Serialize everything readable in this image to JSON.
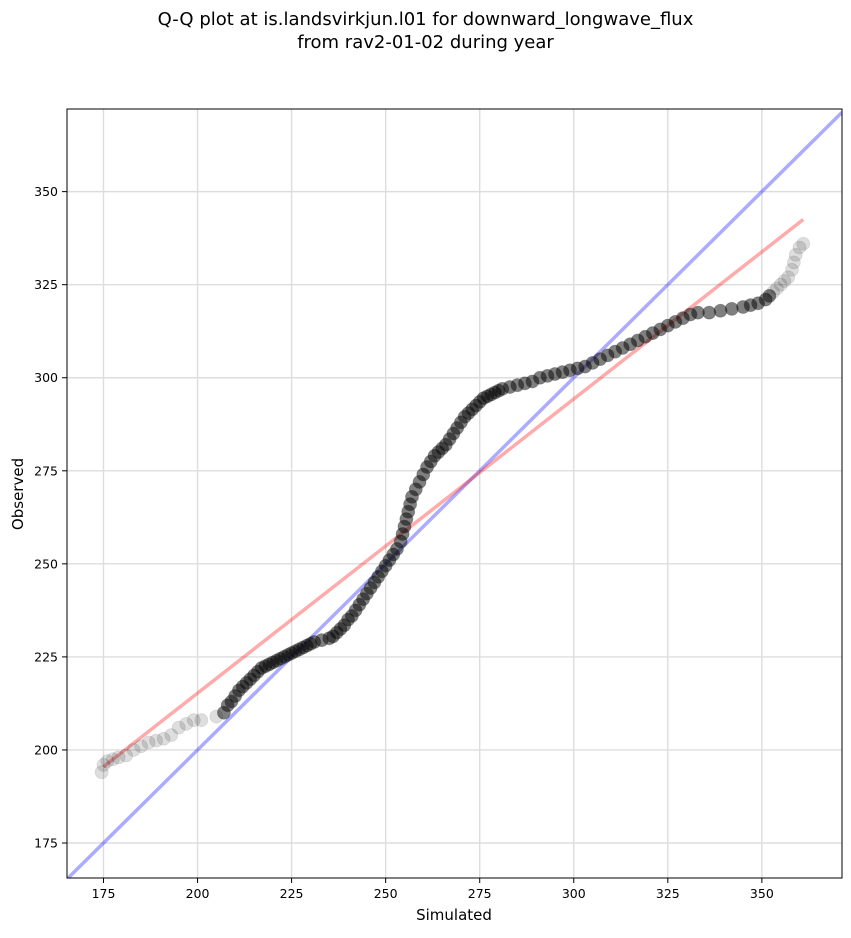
{
  "chart_data": {
    "type": "scatter",
    "title_lines": [
      "Q-Q plot at is.landsvirkjun.l01 for downward_longwave_flux",
      "from rav2-01-02 during year"
    ],
    "xlabel": "Simulated",
    "ylabel": "Observed",
    "xlim": [
      165.3,
      371.3
    ],
    "ylim": [
      165.6,
      372.2
    ],
    "xticks": [
      175,
      200,
      225,
      250,
      275,
      300,
      325,
      350
    ],
    "yticks": [
      175,
      200,
      225,
      250,
      275,
      300,
      325,
      350
    ],
    "grid": true,
    "colors": {
      "points": "#000000",
      "one_to_one_line": "#0000ff",
      "fit_line": "#ff0000",
      "grid": "#dddddd"
    },
    "reference_lines": [
      {
        "kind": "one-to-one",
        "x": [
          165.3,
          371.3
        ],
        "y": [
          165.3,
          371.3
        ]
      },
      {
        "kind": "linear-fit",
        "x": [
          175.0,
          361.0
        ],
        "y": [
          195.5,
          342.5
        ]
      }
    ],
    "series": [
      {
        "points": [
          [
            174.5,
            194
          ],
          [
            175,
            196
          ],
          [
            176,
            197
          ],
          [
            177.5,
            197.5
          ],
          [
            179,
            198
          ],
          [
            181,
            198.5
          ],
          [
            183,
            200
          ],
          [
            185,
            201
          ],
          [
            187,
            202
          ],
          [
            189,
            202.5
          ],
          [
            191,
            203
          ],
          [
            193,
            204
          ],
          [
            195,
            206
          ],
          [
            197,
            207
          ],
          [
            199,
            208
          ],
          [
            201,
            208
          ],
          [
            205,
            209
          ],
          [
            207,
            210
          ],
          [
            208,
            212
          ],
          [
            209,
            213
          ],
          [
            210,
            214.5
          ],
          [
            211,
            216
          ],
          [
            212,
            217
          ],
          [
            213,
            218
          ],
          [
            214,
            219
          ],
          [
            215,
            220
          ],
          [
            216,
            221
          ],
          [
            217,
            222
          ],
          [
            218,
            222.5
          ],
          [
            219,
            223
          ],
          [
            220,
            223.5
          ],
          [
            221,
            224
          ],
          [
            222,
            224.5
          ],
          [
            223,
            225
          ],
          [
            224,
            225.5
          ],
          [
            225,
            226
          ],
          [
            226,
            226.5
          ],
          [
            227,
            227
          ],
          [
            228,
            227.5
          ],
          [
            229,
            228
          ],
          [
            230,
            228.5
          ],
          [
            231,
            229
          ],
          [
            233,
            229.5
          ],
          [
            235,
            230
          ],
          [
            236,
            230.5
          ],
          [
            237,
            231.5
          ],
          [
            238,
            232.5
          ],
          [
            239,
            233.5
          ],
          [
            240,
            235
          ],
          [
            241,
            236
          ],
          [
            242,
            237.5
          ],
          [
            243,
            239
          ],
          [
            244,
            240.5
          ],
          [
            245,
            242
          ],
          [
            246,
            243.5
          ],
          [
            247,
            245
          ],
          [
            248,
            246.5
          ],
          [
            249,
            248
          ],
          [
            250,
            249.5
          ],
          [
            251,
            251
          ],
          [
            252,
            252.5
          ],
          [
            253,
            254
          ],
          [
            254,
            256
          ],
          [
            254.5,
            258
          ],
          [
            255,
            260
          ],
          [
            255.5,
            262
          ],
          [
            256,
            264
          ],
          [
            256.5,
            266
          ],
          [
            257,
            268
          ],
          [
            258,
            270
          ],
          [
            259,
            272
          ],
          [
            260,
            274
          ],
          [
            261,
            276
          ],
          [
            262,
            277.5
          ],
          [
            263,
            279
          ],
          [
            264,
            280
          ],
          [
            265,
            281
          ],
          [
            266,
            282
          ],
          [
            267,
            283.5
          ],
          [
            268,
            285
          ],
          [
            269,
            286.5
          ],
          [
            270,
            288
          ],
          [
            271,
            289.5
          ],
          [
            272,
            290.5
          ],
          [
            273,
            291.5
          ],
          [
            274,
            292.5
          ],
          [
            275,
            293.5
          ],
          [
            276,
            294.5
          ],
          [
            277,
            295
          ],
          [
            278,
            295.5
          ],
          [
            279,
            296
          ],
          [
            280,
            296.5
          ],
          [
            281,
            297
          ],
          [
            283,
            297.5
          ],
          [
            285,
            298
          ],
          [
            287,
            298.5
          ],
          [
            289,
            299
          ],
          [
            291,
            300
          ],
          [
            293,
            300.5
          ],
          [
            295,
            301
          ],
          [
            297,
            301.5
          ],
          [
            299,
            302
          ],
          [
            301,
            302.5
          ],
          [
            303,
            303
          ],
          [
            305,
            304
          ],
          [
            307,
            305
          ],
          [
            309,
            306
          ],
          [
            311,
            307
          ],
          [
            313,
            308
          ],
          [
            315,
            309
          ],
          [
            317,
            310
          ],
          [
            319,
            311
          ],
          [
            321,
            312
          ],
          [
            323,
            313
          ],
          [
            325,
            314
          ],
          [
            327,
            315
          ],
          [
            329,
            316
          ],
          [
            331,
            317
          ],
          [
            333,
            317.5
          ],
          [
            336,
            317.5
          ],
          [
            339,
            318
          ],
          [
            342,
            318.5
          ],
          [
            345,
            319
          ],
          [
            347,
            319.5
          ],
          [
            349,
            320
          ],
          [
            351,
            321
          ],
          [
            352,
            322
          ],
          [
            353,
            323
          ],
          [
            354,
            324
          ],
          [
            355,
            325
          ],
          [
            356,
            326
          ],
          [
            357,
            327
          ],
          [
            358,
            329
          ],
          [
            358.5,
            331
          ],
          [
            359,
            333
          ],
          [
            360,
            335
          ],
          [
            361,
            336
          ]
        ]
      }
    ]
  }
}
